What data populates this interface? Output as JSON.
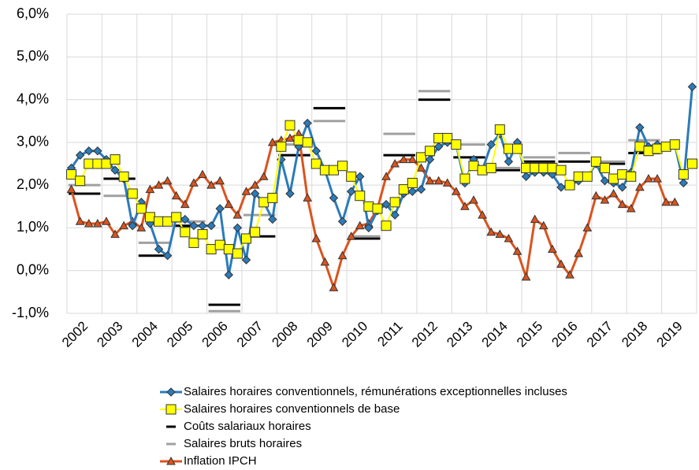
{
  "chart_data": {
    "type": "line",
    "x": [
      2002.125,
      2002.375,
      2002.625,
      2002.875,
      2003.125,
      2003.375,
      2003.625,
      2003.875,
      2004.125,
      2004.375,
      2004.625,
      2004.875,
      2005.125,
      2005.375,
      2005.625,
      2005.875,
      2006.125,
      2006.375,
      2006.625,
      2006.875,
      2007.125,
      2007.375,
      2007.625,
      2007.875,
      2008.125,
      2008.375,
      2008.625,
      2008.875,
      2009.125,
      2009.375,
      2009.625,
      2009.875,
      2010.125,
      2010.375,
      2010.625,
      2010.875,
      2011.125,
      2011.375,
      2011.625,
      2011.875,
      2012.125,
      2012.375,
      2012.625,
      2012.875,
      2013.125,
      2013.375,
      2013.625,
      2013.875,
      2014.125,
      2014.375,
      2014.625,
      2014.875,
      2015.125,
      2015.375,
      2015.625,
      2015.875,
      2016.125,
      2016.375,
      2016.625,
      2016.875,
      2017.125,
      2017.375,
      2017.625,
      2017.875,
      2018.125,
      2018.375,
      2018.625,
      2018.875,
      2019.125,
      2019.375,
      2019.625,
      2019.875
    ],
    "xlim": [
      2002,
      2020
    ],
    "xticks": [
      2002,
      2003,
      2004,
      2005,
      2006,
      2007,
      2008,
      2009,
      2010,
      2011,
      2012,
      2013,
      2014,
      2015,
      2016,
      2017,
      2018,
      2019
    ],
    "ylim": [
      -1,
      6
    ],
    "yticks": [
      {
        "value": -1,
        "label": "-1,0%"
      },
      {
        "value": 0,
        "label": "0,0%"
      },
      {
        "value": 1,
        "label": "1,0%"
      },
      {
        "value": 2,
        "label": "2,0%"
      },
      {
        "value": 3,
        "label": "3,0%"
      },
      {
        "value": 4,
        "label": "4,0%"
      },
      {
        "value": 5,
        "label": "5,0%"
      },
      {
        "value": 6,
        "label": "6,0%"
      }
    ],
    "grid": true,
    "legend": "bottom",
    "series": [
      {
        "name": "Salaires horaires conventionnels, rémunérations exceptionnelles incluses",
        "color": "#2b7bba",
        "marker": "diamond",
        "values": [
          2.4,
          2.7,
          2.8,
          2.8,
          2.6,
          2.35,
          2.15,
          1.05,
          1.6,
          1.1,
          0.5,
          0.35,
          1.25,
          1.2,
          1.05,
          1.05,
          1.05,
          1.45,
          -0.1,
          1.0,
          0.25,
          1.8,
          1.6,
          1.2,
          2.6,
          1.8,
          2.9,
          3.45,
          2.8,
          2.35,
          1.7,
          1.15,
          1.85,
          2.2,
          1.0,
          1.4,
          1.55,
          1.3,
          1.8,
          1.85,
          1.9,
          2.6,
          2.9,
          3.0,
          2.95,
          2.05,
          2.6,
          2.35,
          2.95,
          3.2,
          2.55,
          3.0,
          2.2,
          2.3,
          2.3,
          2.25,
          1.95,
          2.0,
          2.1,
          2.2,
          2.5,
          2.1,
          2.05,
          1.95,
          2.3,
          3.35,
          2.9,
          2.95,
          2.9,
          2.95,
          2.05,
          4.3
        ]
      },
      {
        "name": "Salaires horaires conventionnels de base",
        "color": "#ffff00",
        "marker": "square",
        "values": [
          2.25,
          2.1,
          2.5,
          2.5,
          2.5,
          2.6,
          2.2,
          1.8,
          1.45,
          1.25,
          1.15,
          1.15,
          1.25,
          0.9,
          0.65,
          0.85,
          0.5,
          0.6,
          0.5,
          0.4,
          0.75,
          0.9,
          1.6,
          1.7,
          2.9,
          3.4,
          3.05,
          3.0,
          2.5,
          2.35,
          2.35,
          2.45,
          2.2,
          1.75,
          1.5,
          1.45,
          1.05,
          1.6,
          1.9,
          2.05,
          2.65,
          2.8,
          3.1,
          3.1,
          2.95,
          2.15,
          2.45,
          2.35,
          2.4,
          3.3,
          2.85,
          2.85,
          2.4,
          2.4,
          2.4,
          2.4,
          2.35,
          2.0,
          2.2,
          2.2,
          2.55,
          2.4,
          2.15,
          2.25,
          2.2,
          2.9,
          2.8,
          2.85,
          2.9,
          2.95,
          2.25,
          2.5
        ]
      },
      {
        "name": "Coûts salariaux horaires",
        "color": "#000000",
        "marker": "dash",
        "x": [
          2002,
          2003,
          2004,
          2005,
          2006,
          2007,
          2008,
          2009,
          2010,
          2011,
          2012,
          2013,
          2014,
          2015,
          2016,
          2017,
          2018
        ],
        "values": [
          1.8,
          2.15,
          0.35,
          1.05,
          -0.8,
          0.8,
          2.7,
          3.8,
          0.75,
          2.7,
          4.0,
          2.65,
          2.35,
          2.55,
          2.55,
          2.5,
          2.75
        ]
      },
      {
        "name": "Salaires bruts horaires",
        "color": "#a0a0a0",
        "marker": "dash",
        "x": [
          2002,
          2003,
          2004,
          2005,
          2006,
          2007,
          2008,
          2009,
          2010,
          2011,
          2012,
          2013,
          2014,
          2015,
          2016,
          2017,
          2018
        ],
        "values": [
          2.0,
          1.75,
          0.65,
          1.15,
          -0.95,
          1.3,
          2.95,
          3.5,
          0.8,
          3.2,
          4.2,
          2.95,
          2.4,
          2.65,
          2.75,
          2.55,
          3.05
        ]
      },
      {
        "name": "Inflation IPCH",
        "color": "#d9541e",
        "marker": "triangle",
        "values": [
          1.9,
          1.15,
          1.1,
          1.1,
          1.15,
          0.85,
          1.05,
          1.15,
          1.0,
          1.9,
          2.0,
          2.1,
          1.75,
          1.55,
          2.05,
          2.25,
          2.0,
          2.1,
          1.55,
          1.3,
          1.85,
          2.0,
          2.2,
          3.0,
          3.05,
          3.1,
          3.2,
          1.7,
          0.75,
          0.2,
          -0.4,
          0.35,
          0.8,
          1.05,
          1.1,
          1.45,
          2.2,
          2.5,
          2.6,
          2.6,
          2.4,
          2.1,
          2.1,
          2.05,
          1.85,
          1.5,
          1.65,
          1.3,
          0.9,
          0.85,
          0.75,
          0.45,
          -0.15,
          1.2,
          1.05,
          0.5,
          0.15,
          -0.1,
          0.4,
          1.0,
          1.75,
          1.65,
          1.8,
          1.55,
          1.45,
          1.95,
          2.15,
          2.15,
          1.6,
          1.6,
          null,
          null
        ]
      }
    ]
  }
}
